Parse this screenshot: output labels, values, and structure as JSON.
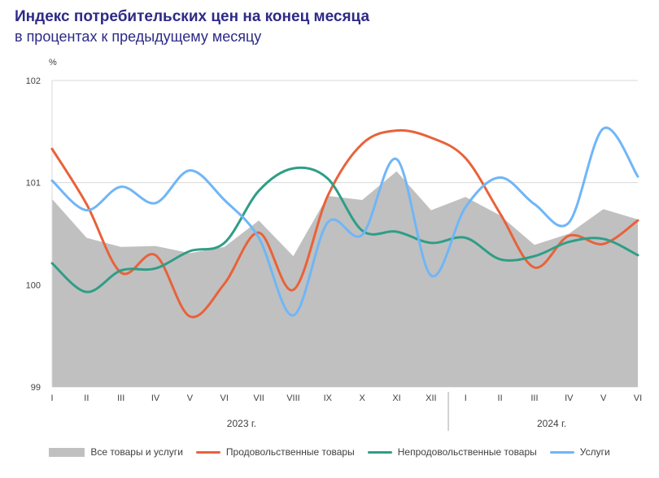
{
  "chart_data": {
    "type": "line",
    "title": "Индекс потребительских цен на конец месяца",
    "subtitle": "в процентах к предыдущему месяцу",
    "ylabel": "%",
    "ylim": [
      99,
      102
    ],
    "yticks": [
      "99",
      "100",
      "101",
      "102"
    ],
    "categories": [
      "I",
      "II",
      "III",
      "IV",
      "V",
      "VI",
      "VII",
      "VIII",
      "IX",
      "X",
      "XI",
      "XII",
      "I",
      "II",
      "III",
      "IV",
      "V",
      "VI"
    ],
    "year_groups": [
      {
        "label": "2023 г.",
        "start": 0,
        "end": 11
      },
      {
        "label": "2024 г.",
        "start": 12,
        "end": 17
      }
    ],
    "series": [
      {
        "name": "Все товары и услуги",
        "kind": "area",
        "color": "#c0c0c0",
        "values": [
          100.84,
          100.46,
          100.37,
          100.38,
          100.31,
          100.37,
          100.63,
          100.28,
          100.87,
          100.83,
          101.11,
          100.73,
          100.86,
          100.68,
          100.39,
          100.5,
          100.74,
          100.64
        ]
      },
      {
        "name": "Продовольственные товары",
        "kind": "line",
        "color": "#e8623a",
        "values": [
          101.33,
          100.79,
          100.12,
          100.29,
          99.69,
          100.01,
          100.51,
          99.95,
          100.87,
          101.38,
          101.51,
          101.44,
          101.24,
          100.7,
          100.17,
          100.48,
          100.4,
          100.63
        ]
      },
      {
        "name": "Непродовольственные товары",
        "kind": "line",
        "color": "#2f9e86",
        "values": [
          100.21,
          99.93,
          100.14,
          100.16,
          100.33,
          100.41,
          100.92,
          101.14,
          101.04,
          100.53,
          100.52,
          100.41,
          100.46,
          100.25,
          100.28,
          100.42,
          100.45,
          100.29
        ]
      },
      {
        "name": "Услуги",
        "kind": "line",
        "color": "#6fb6f7",
        "values": [
          101.02,
          100.73,
          100.96,
          100.8,
          101.12,
          100.83,
          100.46,
          99.7,
          100.61,
          100.49,
          101.23,
          100.09,
          100.76,
          101.05,
          100.79,
          100.61,
          101.53,
          101.06
        ]
      }
    ]
  }
}
